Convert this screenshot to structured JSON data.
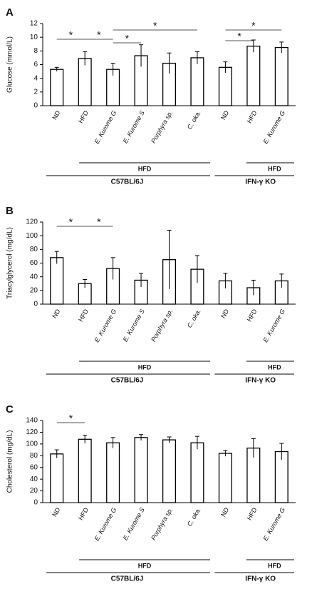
{
  "chart_data": [
    {
      "type": "bar",
      "panel": "A",
      "y_label": "Glucose (mmol/L)",
      "categories": [
        "ND",
        "HFD",
        "E. Kurome G",
        "E. Kurome S",
        "Porphyra sp.",
        "C. oka.",
        "ND",
        "HFD",
        "E. Kurome G"
      ],
      "values": [
        5.3,
        6.9,
        5.3,
        7.3,
        6.2,
        7.0,
        5.6,
        8.7,
        8.5
      ],
      "errors": [
        0.3,
        1.0,
        0.9,
        1.6,
        1.5,
        0.9,
        0.8,
        0.9,
        0.8
      ],
      "ylim": [
        0,
        12
      ],
      "yticks": [
        0,
        2,
        4,
        6,
        8,
        10,
        12
      ],
      "annotations": [
        "*",
        "*",
        "*",
        "*",
        "*",
        "*"
      ],
      "group_labels": [
        "HFD",
        "C57BL/6J",
        "HFD",
        "IFN-γ KO"
      ]
    },
    {
      "type": "bar",
      "panel": "B",
      "y_label": "Triacylglycerol (mg/dL)",
      "categories": [
        "ND",
        "HFD",
        "E. Kurome G",
        "E. Kurome S",
        "Porphyra sp.",
        "C. oka.",
        "ND",
        "HFD",
        "E. Kurome G"
      ],
      "values": [
        68,
        30,
        52,
        35,
        65,
        51,
        34,
        24,
        34
      ],
      "errors": [
        9,
        6,
        16,
        10,
        43,
        20,
        11,
        11,
        10
      ],
      "ylim": [
        0,
        120
      ],
      "yticks": [
        0,
        20,
        40,
        60,
        80,
        100,
        120
      ],
      "annotations": [
        "*",
        "*"
      ],
      "group_labels": [
        "HFD",
        "C57BL/6J",
        "HFD",
        "IFN-γ KO"
      ]
    },
    {
      "type": "bar",
      "panel": "C",
      "y_label": "Cholesterol (mg/dL)",
      "categories": [
        "ND",
        "HFD",
        "E. Kurome G",
        "E. Kurome S",
        "Porphyra sp.",
        "C. oka.",
        "ND",
        "HFD",
        "E. Kurome G"
      ],
      "values": [
        83,
        108,
        102,
        111,
        107,
        102,
        84,
        93,
        87
      ],
      "errors": [
        7,
        7,
        9,
        5,
        5,
        11,
        5,
        16,
        14
      ],
      "ylim": [
        0,
        140
      ],
      "yticks": [
        0,
        20,
        40,
        60,
        80,
        100,
        120,
        140
      ],
      "annotations": [
        "*"
      ],
      "group_labels": [
        "HFD",
        "C57BL/6J",
        "HFD",
        "IFN-γ KO"
      ]
    }
  ]
}
